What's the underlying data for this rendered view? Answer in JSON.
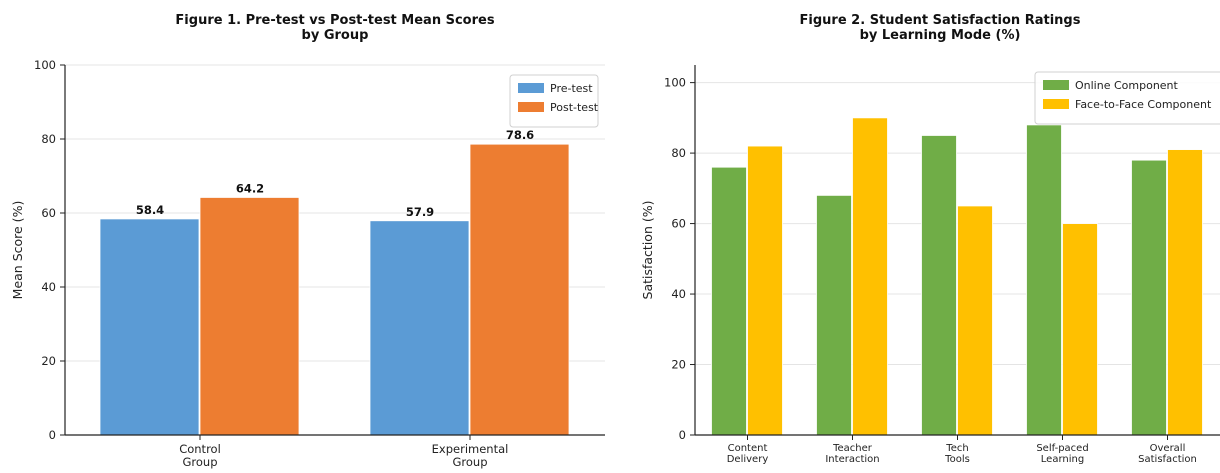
{
  "chart_data": [
    {
      "type": "bar",
      "title": "Figure 1. Pre-test vs Post-test Mean Scores\nby Group",
      "ylabel": "Mean Score (%)",
      "xlabel": "",
      "categories": [
        "Control\nGroup",
        "Experimental\nGroup"
      ],
      "series": [
        {
          "name": "Pre-test",
          "values": [
            58.4,
            57.9
          ],
          "color": "#5b9bd5"
        },
        {
          "name": "Post-test",
          "values": [
            64.2,
            78.6
          ],
          "color": "#ed7d31"
        }
      ],
      "ylim": [
        0,
        100
      ],
      "yticks": [
        0,
        20,
        40,
        60,
        80,
        100
      ],
      "grid": "horizontal",
      "legend": "top-right",
      "show_value_labels": true
    },
    {
      "type": "bar",
      "title": "Figure 2. Student Satisfaction Ratings\nby Learning Mode (%)",
      "ylabel": "Satisfaction (%)",
      "xlabel": "",
      "categories": [
        "Content\nDelivery",
        "Teacher\nInteraction",
        "Tech\nTools",
        "Self-paced\nLearning",
        "Overall\nSatisfaction"
      ],
      "series": [
        {
          "name": "Online Component",
          "values": [
            76,
            68,
            85,
            88,
            78
          ],
          "color": "#70ad47"
        },
        {
          "name": "Face-to-Face Component",
          "values": [
            82,
            90,
            65,
            60,
            81
          ],
          "color": "#ffc000"
        }
      ],
      "ylim": [
        0,
        105
      ],
      "yticks": [
        0,
        20,
        40,
        60,
        80,
        100
      ],
      "grid": "horizontal",
      "legend": "top-right",
      "show_value_labels": false
    }
  ]
}
